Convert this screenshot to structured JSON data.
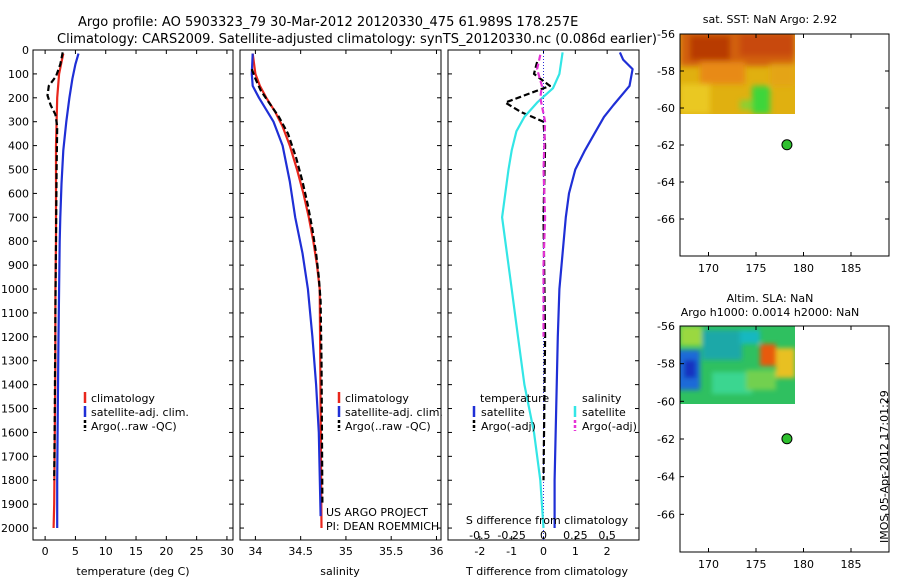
{
  "title": {
    "line1": "Argo profile: AO 5903323_79 30-Mar-2012 20120330_475 61.989S 178.257E",
    "line2": "Climatology: CARS2009. Satellite-adjusted climatology: synTS_20120330.nc (0.086d earlier)"
  },
  "side_label": "IMOS 05-Apr-2012 17:01:29",
  "colors": {
    "red": "#e8261c",
    "blue": "#1f2fd6",
    "black": "#000000",
    "cyan": "#33e6e6",
    "magenta": "#e633d6"
  },
  "depth_ticks": [
    "0",
    "100",
    "200",
    "300",
    "400",
    "500",
    "600",
    "700",
    "800",
    "900",
    "1000",
    "1100",
    "1200",
    "1300",
    "1400",
    "1500",
    "1600",
    "1700",
    "1800",
    "1900",
    "2000"
  ],
  "chart_data": [
    {
      "type": "line",
      "id": "temperature",
      "xlabel": "temperature (deg C)",
      "xticks": [
        "0",
        "5",
        "10",
        "15",
        "20",
        "25",
        "30"
      ],
      "xlim": [
        -2,
        31
      ],
      "ylim": [
        2050,
        0
      ],
      "legend": [
        "climatology",
        "satellite-adj. clim.",
        "Argo(..raw -QC)"
      ],
      "legend_placement": "lower-center",
      "series": [
        {
          "name": "climatology",
          "color": "red",
          "x": [
            3.0,
            2.7,
            2.3,
            2.0,
            1.9,
            1.8,
            1.8,
            1.8,
            1.7,
            1.7,
            1.6,
            1.5,
            1.4
          ],
          "y": [
            15,
            50,
            100,
            200,
            300,
            400,
            600,
            800,
            1000,
            1300,
            1600,
            1900,
            2000
          ]
        },
        {
          "name": "satellite-adj. clim.",
          "color": "blue",
          "x": [
            5.5,
            5.0,
            4.5,
            4.0,
            3.5,
            3.0,
            2.7,
            2.5,
            2.4,
            2.3,
            2.2,
            2.1,
            2.0,
            2.0
          ],
          "y": [
            15,
            60,
            120,
            200,
            300,
            420,
            560,
            700,
            800,
            1000,
            1200,
            1500,
            1800,
            2000
          ]
        },
        {
          "name": "Argo(..raw -QC)",
          "color": "black",
          "dash": true,
          "x": [
            2.9,
            2.5,
            1.8,
            0.6,
            0.4,
            0.9,
            1.7,
            2.0,
            1.9,
            1.8,
            1.7,
            1.6,
            1.5
          ],
          "y": [
            10,
            60,
            110,
            150,
            190,
            230,
            270,
            320,
            500,
            800,
            1100,
            1500,
            1800
          ]
        }
      ]
    },
    {
      "type": "line",
      "id": "salinity",
      "xlabel": "salinity",
      "xticks": [
        "34",
        "34.5",
        "35",
        "35.5",
        "36"
      ],
      "xlim": [
        33.83,
        36.05
      ],
      "ylim": [
        2050,
        0
      ],
      "legend": [
        "climatology",
        "satellite-adj. clim.",
        "Argo(..raw -QC)"
      ],
      "legend_placement": "lower-right",
      "annotations": [
        "US ARGO PROJECT",
        "PI: DEAN ROEMMICH"
      ],
      "series": [
        {
          "name": "climatology",
          "color": "red",
          "x": [
            33.97,
            34.0,
            34.05,
            34.12,
            34.22,
            34.3,
            34.38,
            34.46,
            34.53,
            34.59,
            34.64,
            34.68,
            34.71,
            34.72,
            34.73
          ],
          "y": [
            15,
            100,
            150,
            200,
            260,
            320,
            400,
            500,
            600,
            700,
            800,
            900,
            1000,
            1500,
            2000
          ]
        },
        {
          "name": "satellite-adj. clim.",
          "color": "blue",
          "x": [
            33.97,
            33.96,
            33.97,
            34.04,
            34.12,
            34.2,
            34.3,
            34.38,
            34.44,
            34.52,
            34.58,
            34.63,
            34.67,
            34.7,
            34.72
          ],
          "y": [
            15,
            100,
            150,
            200,
            250,
            300,
            400,
            550,
            700,
            850,
            1000,
            1200,
            1400,
            1600,
            1950
          ]
        },
        {
          "name": "Argo(..raw -QC)",
          "color": "black",
          "dash": true,
          "x": [
            33.96,
            34.0,
            34.06,
            34.15,
            34.26,
            34.36,
            34.45,
            34.52,
            34.58,
            34.63,
            34.67,
            34.7,
            34.72,
            34.73,
            34.74
          ],
          "y": [
            80,
            120,
            170,
            220,
            280,
            350,
            450,
            550,
            650,
            750,
            850,
            950,
            1050,
            1300,
            1900
          ]
        }
      ]
    },
    {
      "type": "line",
      "id": "difference",
      "xlabel": "T difference from climatology",
      "xlabel_top": "S difference from climatology",
      "xticks": [
        "-2",
        "-1",
        "0",
        "1",
        "2"
      ],
      "xticks_top": [
        "-0.5",
        "-0.25",
        "0",
        "0.25",
        "0.5"
      ],
      "xlim": [
        -3,
        3
      ],
      "ylim": [
        2050,
        0
      ],
      "legend_temperature_title": "temperature",
      "legend_salinity_title": "salinity",
      "legend": [
        "satellite",
        "Argo(-adj)",
        "satellite",
        "Argo(-adj)"
      ],
      "series": [
        {
          "name": "satellite",
          "group": "temperature",
          "color": "blue",
          "x": [
            2.4,
            2.5,
            2.8,
            2.7,
            2.2,
            1.9,
            1.6,
            1.3,
            1.0,
            0.8,
            0.7,
            0.6,
            0.5,
            0.45,
            0.4,
            0.35,
            0.35
          ],
          "y": [
            10,
            40,
            80,
            150,
            230,
            280,
            350,
            420,
            500,
            600,
            700,
            850,
            1000,
            1200,
            1500,
            1800,
            2000
          ]
        },
        {
          "name": "Argo(-adj)",
          "group": "temperature",
          "color": "black",
          "dash": true,
          "x": [
            -0.2,
            -0.3,
            0.2,
            -0.6,
            -1.2,
            -0.7,
            0.0,
            0.05,
            0.0,
            0.05,
            0.0
          ],
          "y": [
            50,
            100,
            150,
            190,
            220,
            260,
            300,
            400,
            700,
            1200,
            1800
          ]
        },
        {
          "name": "satellite",
          "group": "salinity",
          "color": "cyan",
          "x": [
            0.6,
            0.5,
            0.3,
            -0.2,
            -0.6,
            -0.85,
            -1.0,
            -1.1,
            -1.2,
            -1.3,
            -1.2,
            -1.0,
            -0.8,
            -0.6,
            -0.3,
            -0.1,
            0.0
          ],
          "y": [
            10,
            100,
            160,
            220,
            280,
            340,
            420,
            500,
            600,
            700,
            800,
            1000,
            1200,
            1400,
            1600,
            1800,
            2000
          ]
        },
        {
          "name": "Argo(-adj)",
          "group": "salinity",
          "color": "magenta",
          "dash": true,
          "x": [
            -0.1,
            -0.2,
            -0.05,
            -0.1,
            0.05,
            0.0,
            0.05,
            0.0,
            0.0
          ],
          "y": [
            20,
            80,
            150,
            200,
            300,
            500,
            700,
            900,
            1200
          ]
        }
      ]
    },
    {
      "type": "heatmap",
      "id": "sst_map",
      "title": "sat. SST: NaN Argo: 2.92",
      "xticks": [
        "170",
        "175",
        "180",
        "185"
      ],
      "yticks": [
        "-56",
        "-58",
        "-60",
        "-62",
        "-64",
        "-66"
      ],
      "xlim": [
        167,
        189
      ],
      "ylim": [
        -68,
        -56
      ],
      "profile_location": {
        "lon": 178.257,
        "lat": -61.989
      },
      "colormap": "hot (yellow-orange-red) with green patches"
    },
    {
      "type": "heatmap",
      "id": "sla_map",
      "title_line1": "Altim. SLA: NaN",
      "title_line2": "Argo h1000: 0.0014 h2000: NaN",
      "xticks": [
        "170",
        "175",
        "180",
        "185"
      ],
      "yticks": [
        "-56",
        "-58",
        "-60",
        "-62",
        "-64",
        "-66"
      ],
      "xlim": [
        167,
        189
      ],
      "ylim": [
        -68,
        -56
      ],
      "profile_location": {
        "lon": 178.257,
        "lat": -61.989
      },
      "colormap": "jet (blue-green-yellow-red)"
    }
  ]
}
